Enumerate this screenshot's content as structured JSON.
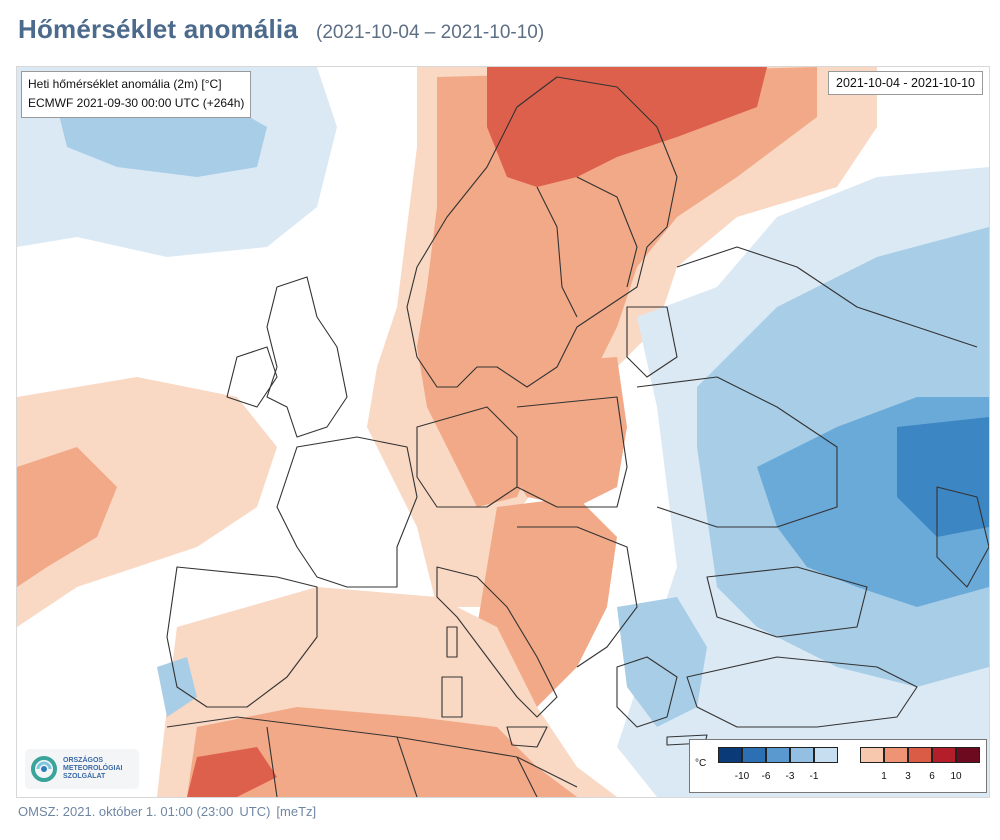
{
  "header": {
    "title": "Hőmérséklet anomália",
    "date_range": "(2021-10-04 – 2021-10-10)"
  },
  "map": {
    "info_line1": "Heti hőmérséklet anomália (2m) [°C]",
    "info_line2": "ECMWF 2021-09-30 00:00 UTC (+264h)",
    "period_label": "2021-10-04 - 2021-10-10",
    "colors": {
      "warm_light": "#f9d8c4",
      "warm_mid": "#f2a987",
      "warm_strong": "#dc604c",
      "cold_light": "#dbe9f4",
      "cold_mid": "#a8cde7",
      "cold_strong": "#6aaad9",
      "cold_deep": "#3c86c4",
      "border": "#333333"
    }
  },
  "logo": {
    "lines": [
      "ORSZÁGOS",
      "METEOROLÓGIAI",
      "SZOLGÁLAT"
    ]
  },
  "legend": {
    "unit": "°C",
    "cold_colors": [
      "#0b3a78",
      "#2c6fb2",
      "#5a99cf",
      "#93c0e2",
      "#c6def0"
    ],
    "warm_colors": [
      "#f7c7ae",
      "#ee9474",
      "#da5c47",
      "#b31e2a",
      "#6e0a20"
    ],
    "cold_ticks": [
      "-10",
      "-6",
      "-3",
      "-1"
    ],
    "warm_ticks": [
      "1",
      "3",
      "6",
      "10"
    ]
  },
  "footer": {
    "source": "OMSZ: 2021. október 1. 01:00 (23:00",
    "utc": "UTC)",
    "author": "[meTz]"
  },
  "side_mark": "»"
}
